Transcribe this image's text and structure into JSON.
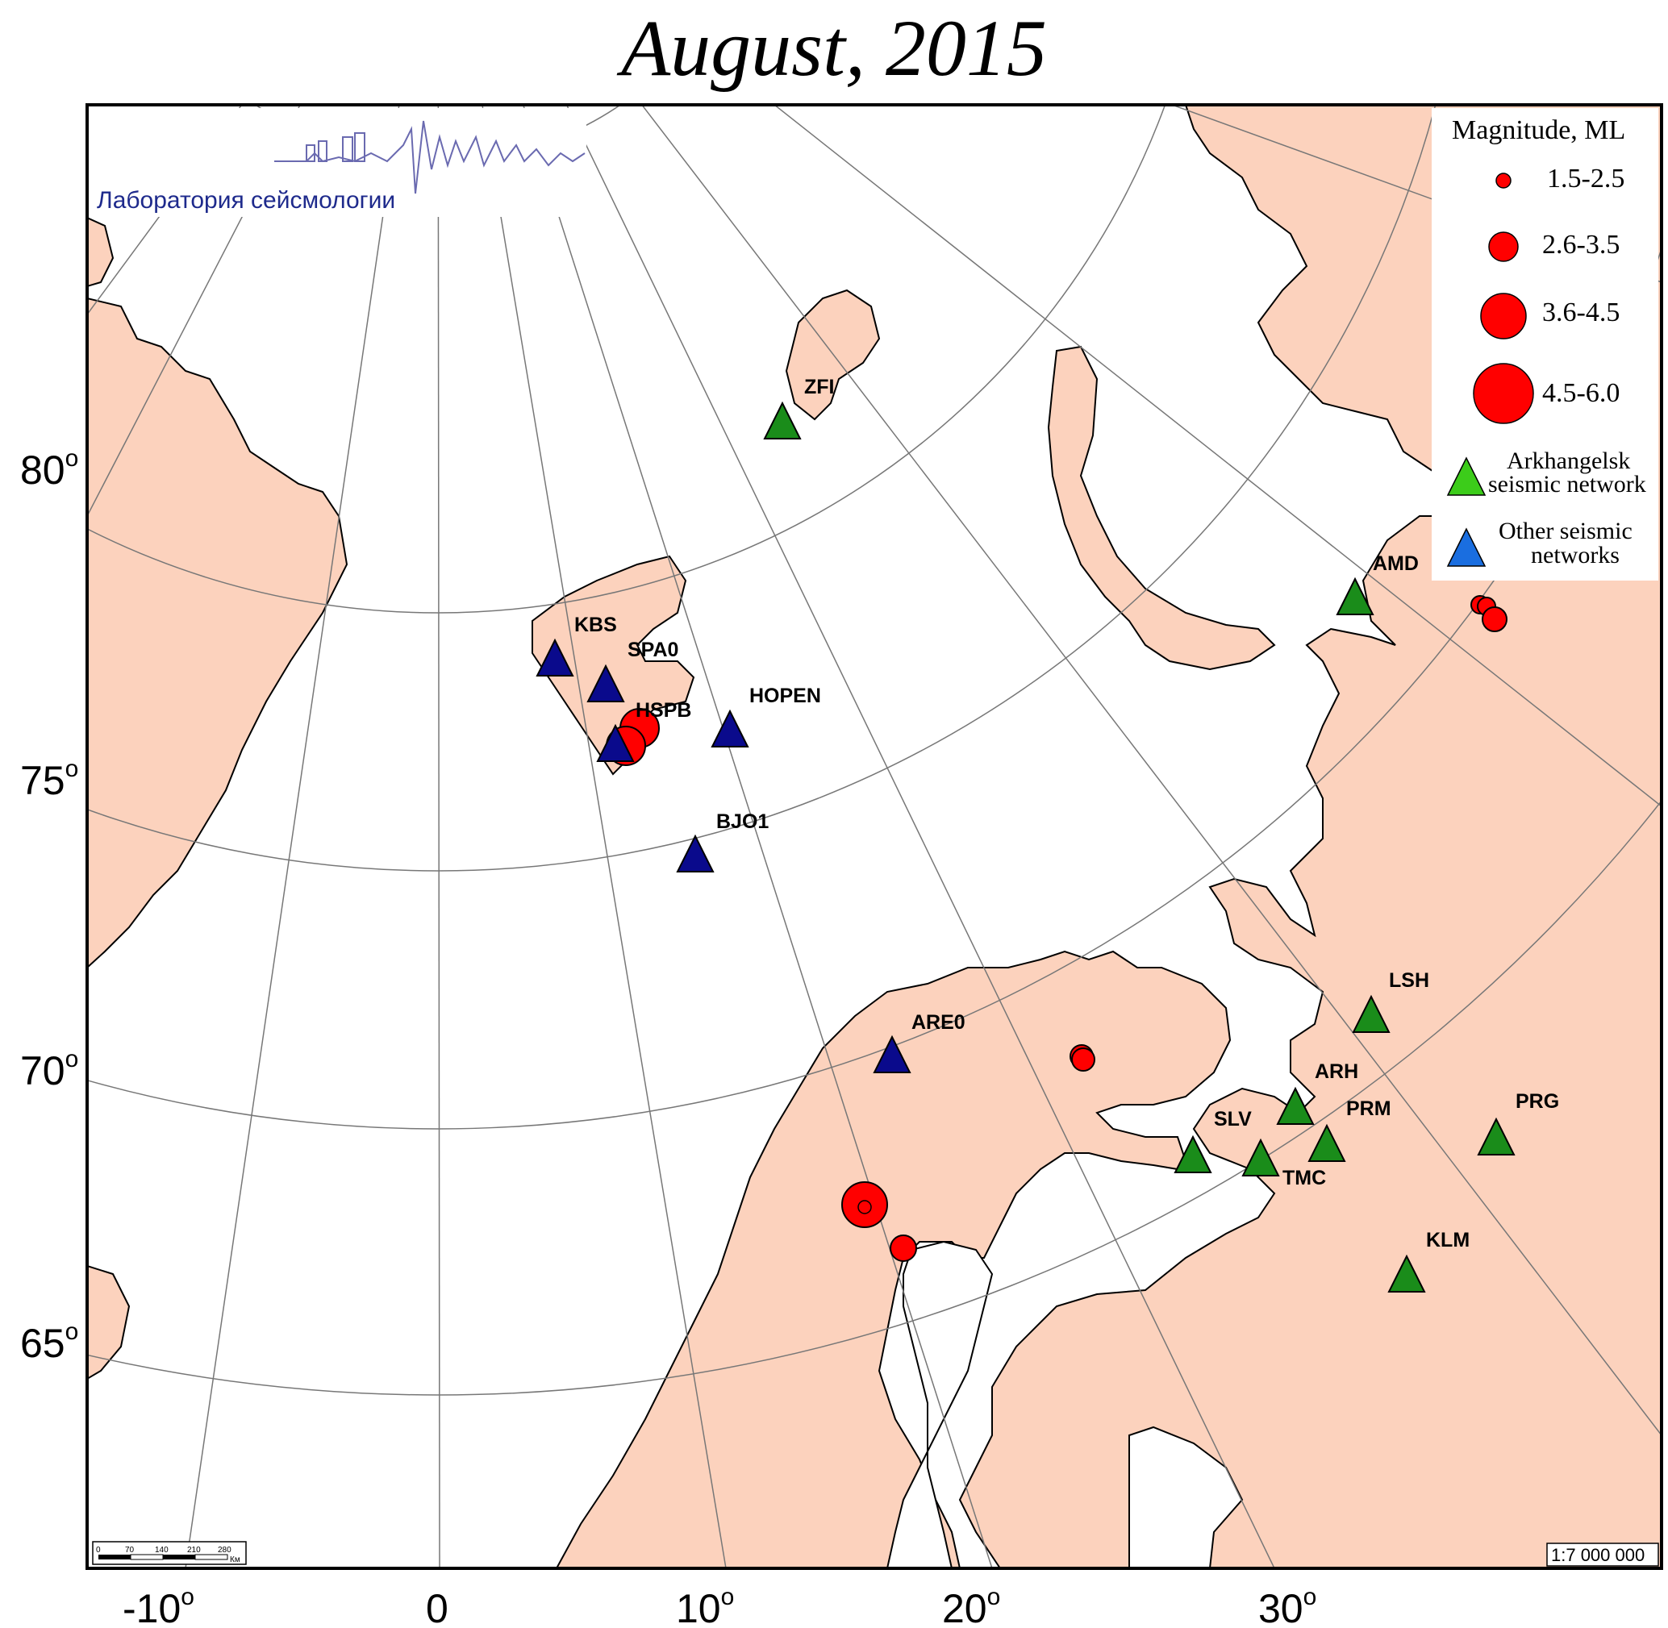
{
  "title": "August, 2015",
  "logo_text": "Лаборатория сейсмологии",
  "scale_label": "1:7 000 000",
  "scalebar": {
    "ticks": [
      "0",
      "70",
      "140",
      "210",
      "280"
    ],
    "unit": "Км"
  },
  "longitude_labels": [
    {
      "text": "-10",
      "sup": "o"
    },
    {
      "text": "0",
      "sup": ""
    },
    {
      "text": "10",
      "sup": "o"
    },
    {
      "text": "20",
      "sup": "o"
    },
    {
      "text": "30",
      "sup": "o"
    }
  ],
  "latitude_labels": [
    {
      "text": "80",
      "sup": "o"
    },
    {
      "text": "75",
      "sup": "o"
    },
    {
      "text": "70",
      "sup": "o"
    },
    {
      "text": "65",
      "sup": "o"
    }
  ],
  "legend": {
    "title": "Magnitude, ML",
    "magnitudes": [
      "1.5-2.5",
      "2.6-3.5",
      "3.6-4.5",
      "4.5-6.0"
    ],
    "arkhangelsk_line1": "Arkhangelsk",
    "arkhangelsk_line2": "seismic network",
    "other_line1": "Other seismic",
    "other_line2": "networks"
  },
  "colors": {
    "land": "#fcd2bd",
    "sea": "#ffffff",
    "event": "#ff0000",
    "arkhangelsk_station": "#1a8c1a",
    "other_station": "#0a0a8c"
  },
  "stations": [
    {
      "code": "ZFI",
      "network": "arkhangelsk"
    },
    {
      "code": "AMD",
      "network": "arkhangelsk"
    },
    {
      "code": "KBS",
      "network": "other"
    },
    {
      "code": "SPA0",
      "network": "other"
    },
    {
      "code": "HSPB",
      "network": "other"
    },
    {
      "code": "HOPEN",
      "network": "other"
    },
    {
      "code": "BJO1",
      "network": "other"
    },
    {
      "code": "ARE0",
      "network": "other"
    },
    {
      "code": "LSH",
      "network": "arkhangelsk"
    },
    {
      "code": "ARH",
      "network": "arkhangelsk"
    },
    {
      "code": "PRM",
      "network": "arkhangelsk"
    },
    {
      "code": "PRG",
      "network": "arkhangelsk"
    },
    {
      "code": "SLV",
      "network": "arkhangelsk"
    },
    {
      "code": "TMC",
      "network": "arkhangelsk"
    },
    {
      "code": "KLM",
      "network": "arkhangelsk"
    }
  ]
}
